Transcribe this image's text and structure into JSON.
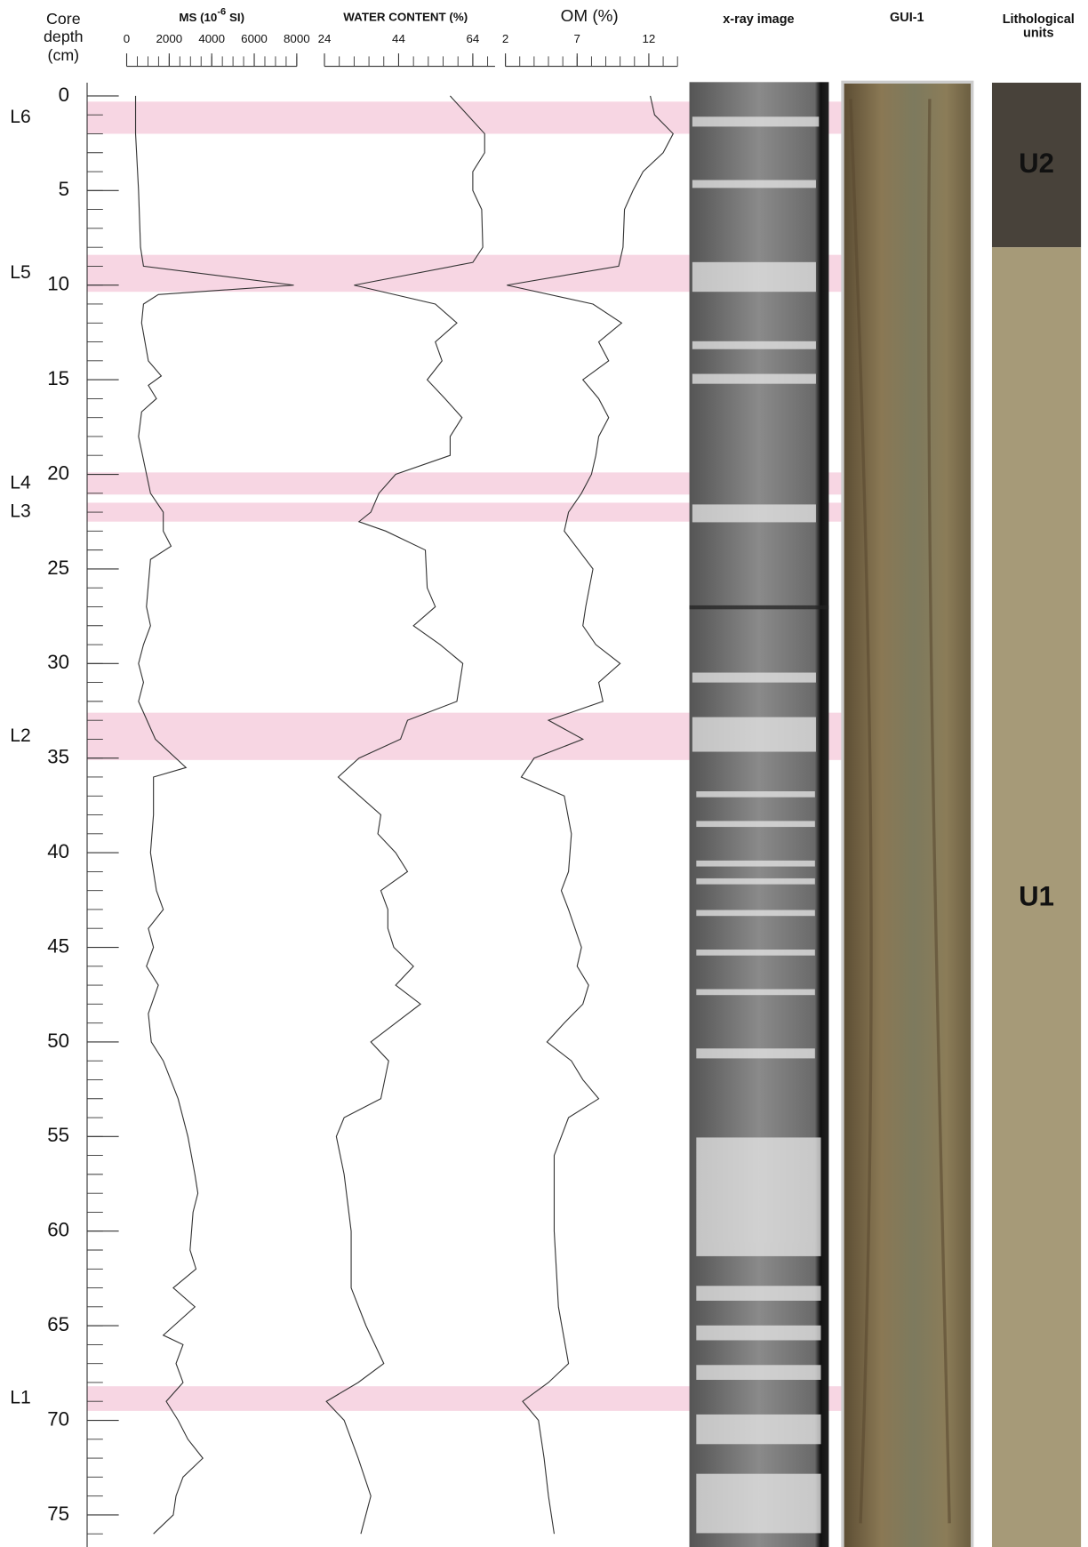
{
  "depth_axis": {
    "label": [
      "Core",
      "depth",
      "(cm)"
    ],
    "ylim": [
      -0.7,
      76.8
    ],
    "yticks": [
      0,
      5,
      10,
      15,
      20,
      25,
      30,
      35,
      40,
      45,
      50,
      55,
      60,
      65,
      70,
      75
    ],
    "yminorticks": [
      0,
      1,
      2,
      3,
      4,
      5,
      6,
      7,
      8,
      9,
      10,
      11,
      12,
      13,
      14,
      15,
      16,
      17,
      18,
      19,
      20,
      21,
      22,
      23,
      24,
      25,
      26,
      27,
      28,
      29,
      30,
      31,
      32,
      33,
      34,
      35,
      36,
      37,
      38,
      39,
      40,
      41,
      42,
      43,
      44,
      45,
      46,
      47,
      48,
      49,
      50,
      51,
      52,
      53,
      54,
      55,
      56,
      57,
      58,
      59,
      60,
      61,
      62,
      63,
      64,
      65,
      66,
      67,
      68,
      69,
      70,
      71,
      72,
      73,
      74,
      75,
      76
    ]
  },
  "layers": [
    {
      "name": "L6",
      "top": 0.3,
      "bottom": 2.0
    },
    {
      "name": "L5",
      "top": 8.4,
      "bottom": 10.35
    },
    {
      "name": "L4",
      "top": 19.9,
      "bottom": 21.07
    },
    {
      "name": "L3",
      "top": 21.5,
      "bottom": 22.5
    },
    {
      "name": "L2",
      "top": 32.6,
      "bottom": 35.1
    },
    {
      "name": "L1",
      "top": 68.2,
      "bottom": 69.5
    }
  ],
  "layer_color": "#f7d6e3",
  "chart_data": [
    {
      "type": "line",
      "title": [
        "MS (10",
        "-6",
        " SI)"
      ],
      "xlim": [
        0,
        8000
      ],
      "xticks": [
        0,
        2000,
        4000,
        6000,
        8000
      ],
      "xminorticks": [
        0,
        500,
        1000,
        1500,
        2000,
        2500,
        3000,
        3500,
        4000,
        4500,
        5000,
        5500,
        6000,
        6500,
        7000,
        7500,
        8000
      ],
      "series": [
        {
          "color": "#333333",
          "depth": [
            0,
            2,
            5,
            8,
            9,
            10,
            10.5,
            11,
            12,
            14,
            14.8,
            15.3,
            16,
            16.7,
            18,
            21,
            22,
            23,
            23.8,
            24.5,
            27,
            28,
            29,
            30,
            31,
            32,
            34,
            35.5,
            36,
            38,
            40,
            42,
            43,
            44,
            45,
            46,
            47,
            48.5,
            50,
            51,
            53,
            55,
            57,
            58,
            59,
            61,
            62,
            63,
            64,
            65.5,
            66,
            67,
            68,
            69,
            70,
            71,
            72,
            73,
            74,
            75,
            76
          ],
          "values": [
            420,
            420,
            560,
            650,
            790,
            7860,
            1490,
            790,
            700,
            1020,
            1630,
            1020,
            1400,
            700,
            560,
            1120,
            1720,
            1720,
            2090,
            1120,
            930,
            1120,
            790,
            560,
            790,
            560,
            1350,
            2790,
            1260,
            1260,
            1120,
            1400,
            1720,
            1020,
            1260,
            930,
            1490,
            1020,
            1160,
            1720,
            2420,
            2880,
            3210,
            3350,
            3120,
            2980,
            3260,
            2190,
            3210,
            1720,
            2650,
            2320,
            2650,
            1860,
            2420,
            2880,
            3580,
            2650,
            2320,
            2190,
            1260
          ]
        }
      ]
    },
    {
      "type": "line",
      "title": [
        "WATER CONTENT  (%)"
      ],
      "xlim": [
        24,
        70
      ],
      "xticks": [
        24,
        44,
        64
      ],
      "xminorticks": [
        24,
        28,
        32,
        36,
        40,
        44,
        48,
        52,
        56,
        60,
        64,
        68
      ],
      "series": [
        {
          "color": "#333333",
          "depth": [
            0,
            2,
            3,
            4,
            5,
            6,
            8,
            8.8,
            10,
            11,
            12,
            13,
            14,
            15,
            16,
            17,
            18,
            19,
            20,
            21,
            22,
            22.5,
            23,
            24,
            26,
            27,
            28,
            29,
            30,
            32,
            33,
            34,
            35,
            36,
            38,
            39,
            40,
            41,
            42,
            43,
            44,
            45,
            46,
            47,
            48,
            50,
            51,
            53,
            54,
            55,
            57,
            60,
            63,
            65,
            67,
            68,
            69,
            70,
            72,
            74,
            76
          ],
          "values": [
            57.9,
            67.2,
            67.2,
            64,
            64,
            66.4,
            66.7,
            64,
            32,
            53.9,
            59.7,
            53.9,
            55.7,
            51.7,
            56.5,
            61.1,
            57.9,
            57.9,
            43.2,
            38.7,
            36.5,
            33.3,
            40.5,
            51.2,
            51.7,
            53.9,
            48,
            55.2,
            61.3,
            59.7,
            46.4,
            44.5,
            33.3,
            27.7,
            39.2,
            38.4,
            43.2,
            46.4,
            39.2,
            41.1,
            41.1,
            42.7,
            48,
            43.2,
            49.9,
            36.5,
            41.3,
            39.2,
            29.3,
            27.2,
            29.3,
            31.2,
            31.2,
            35.2,
            40,
            33.1,
            24.5,
            29.3,
            33.1,
            36.5,
            33.8
          ]
        }
      ]
    },
    {
      "type": "line",
      "title": [
        "OM (%)"
      ],
      "xlim": [
        2,
        14
      ],
      "xticks": [
        2,
        7,
        12
      ],
      "xminorticks": [
        2,
        3,
        4,
        5,
        6,
        7,
        8,
        9,
        10,
        11,
        12,
        13,
        14
      ],
      "series": [
        {
          "color": "#333333",
          "depth": [
            0,
            1,
            2,
            3,
            4,
            5,
            6,
            8,
            9,
            10,
            11,
            12,
            13,
            14,
            15,
            16,
            17,
            18,
            19,
            20,
            21,
            22,
            23,
            25,
            27,
            28,
            29,
            30,
            31,
            32,
            33,
            34,
            35,
            36,
            37,
            39,
            41,
            42,
            43,
            45,
            46,
            47,
            48,
            49,
            50,
            51,
            52,
            53,
            54,
            56,
            60,
            64,
            67,
            68,
            69,
            70,
            72,
            74,
            76
          ],
          "values": [
            12.1,
            12.4,
            13.7,
            13,
            11.6,
            10.9,
            10.3,
            10.2,
            9.9,
            2.1,
            8.1,
            10.1,
            8.5,
            9.2,
            7.4,
            8.5,
            9.2,
            8.5,
            8.3,
            8,
            7.3,
            6.4,
            6.1,
            8.1,
            7.6,
            7.4,
            8.3,
            10,
            8.5,
            8.8,
            5,
            7.4,
            4,
            3.1,
            6.1,
            6.6,
            6.4,
            5.9,
            6.4,
            7.3,
            7,
            7.8,
            7.4,
            6.1,
            4.9,
            6.6,
            7.4,
            8.5,
            6.4,
            5.4,
            5.4,
            5.7,
            6.4,
            5,
            3.2,
            4.3,
            4.7,
            5,
            5.4
          ]
        }
      ]
    }
  ],
  "images": [
    {
      "title": "x-ray image"
    },
    {
      "title": "GUI-1"
    }
  ],
  "lithological_units": {
    "title": [
      "Lithological",
      "units"
    ],
    "units": [
      {
        "label": "U2",
        "top": -0.7,
        "bottom": 8,
        "color": "#48423a"
      },
      {
        "label": "U1",
        "top": 8,
        "bottom": 76.8,
        "color": "#a69a78"
      }
    ]
  }
}
